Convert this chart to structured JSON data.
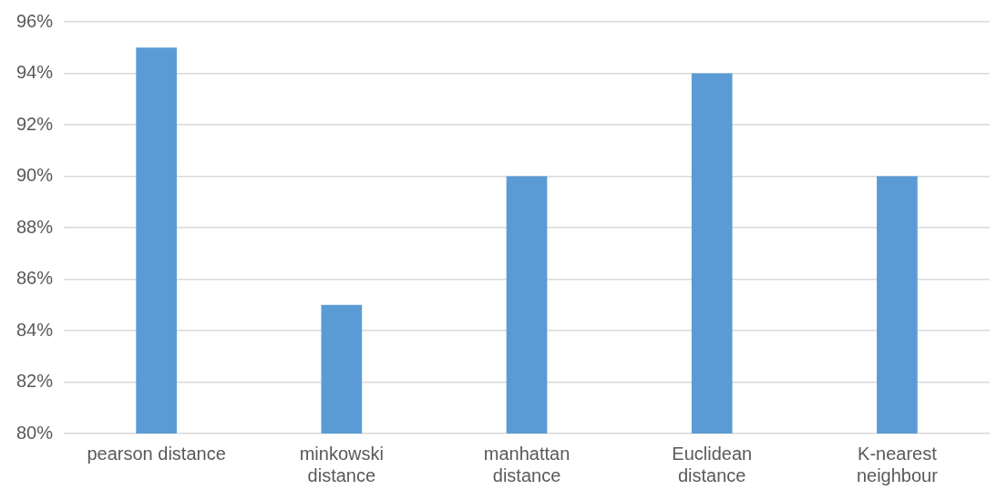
{
  "chart_data": {
    "type": "bar",
    "categories": [
      "pearson distance",
      "minkowski\ndistance",
      "manhattan\ndistance",
      "Euclidean\ndistance",
      "K-nearest\nneighbour"
    ],
    "values": [
      95,
      85,
      90,
      94,
      90
    ],
    "color": "#5b9bd5",
    "ylim": [
      80,
      96
    ],
    "yticks": [
      {
        "value": 80,
        "label": "80%"
      },
      {
        "value": 82,
        "label": "82%"
      },
      {
        "value": 84,
        "label": "84%"
      },
      {
        "value": 86,
        "label": "86%"
      },
      {
        "value": 88,
        "label": "88%"
      },
      {
        "value": 90,
        "label": "90%"
      },
      {
        "value": 92,
        "label": "92%"
      },
      {
        "value": 94,
        "label": "94%"
      },
      {
        "value": 96,
        "label": "96%"
      }
    ],
    "grid": "y",
    "legend": false
  }
}
